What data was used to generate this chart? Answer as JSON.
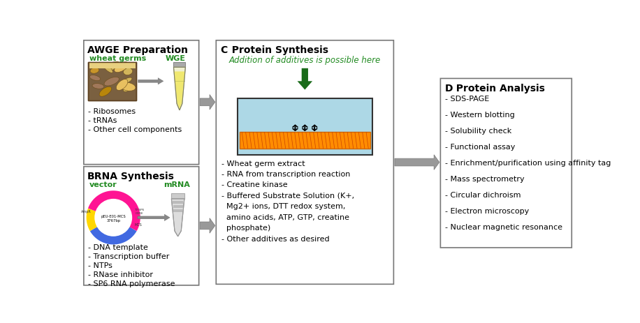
{
  "fig_width": 9.16,
  "fig_height": 4.64,
  "bg_color": "#ffffff",
  "panel_border_color": "#777777",
  "green": "#228B22",
  "panel_A": {
    "title_bold": "A",
    "title_rest": " WGE Preparation",
    "label_wheat": "wheat germs",
    "label_wge": "WGE",
    "items": [
      "- Ribosomes",
      "- tRNAs",
      "- Other cell components"
    ]
  },
  "panel_B": {
    "title_bold": "B",
    "title_rest": " RNA Synthesis",
    "label_vector": "vector",
    "label_mrna": "mRNA",
    "items": [
      "- DNA template",
      "- Transcription buffer",
      "- NTPs",
      "- RNase inhibitor",
      "- SP6 RNA polymerase"
    ]
  },
  "panel_C": {
    "title_bold": "C",
    "title_rest": "  Protein Synthesis",
    "additive_text": "Addition of additives is possible here",
    "items": [
      "- Wheat germ extract",
      "- RNA from transcription reaction",
      "- Creatine kinase",
      "- Buffered Substrate Solution (K+,",
      "  Mg2+ ions, DTT redox system,",
      "  amino acids, ATP, GTP, creatine",
      "  phosphate)",
      "- Other additives as desired"
    ],
    "arrow_color": "#1a6b1a",
    "water_color": "#add8e6",
    "membrane_color": "#ff8c00"
  },
  "panel_D": {
    "title_bold": "D",
    "title_rest": "  Protein Analysis",
    "items": [
      "- SDS-PAGE",
      "- Western blotting",
      "- Solubility check",
      "- Functional assay",
      "- Enrichment/purification using affinity tag",
      "- Mass spectrometry",
      "- Circular dichroism",
      "- Electron microscopy",
      "- Nuclear magnetic resonance"
    ]
  },
  "arrow_gray": "#909090",
  "text_color": "#000000"
}
